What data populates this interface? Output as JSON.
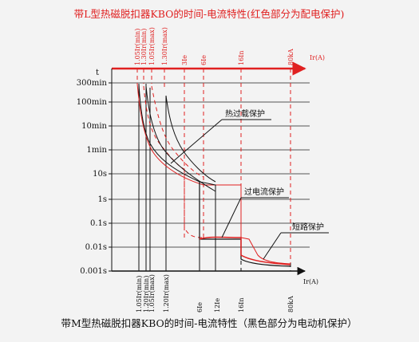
{
  "chart_data": {
    "type": "line",
    "title_top": "带L型热磁脱扣器KBO的时间-电流特性(红色部分为配电保护)",
    "title_bottom": "带M型热磁脱扣器KBO的时间-电流特性（黑色部分为电动机保护）",
    "y_axis": {
      "label": "t",
      "ticks": [
        "300min",
        "100min",
        "10min",
        "1min",
        "10s",
        "1s",
        "0.1s",
        "0.01s",
        "0.001s"
      ],
      "scale": "log"
    },
    "x_axis_label": "Ir(A)",
    "x_axis_label_bottom": "Ir(A)",
    "top_ticks": [
      {
        "label": "1.05Ir(min)",
        "color": "#e02020"
      },
      {
        "label": "1.30Ir(min)",
        "color": "#e02020"
      },
      {
        "label": "1.05Ir(max)",
        "color": "#e02020"
      },
      {
        "label": "1.30Ir(max)",
        "color": "#e02020"
      },
      {
        "label": "3Ie",
        "color": "#e02020"
      },
      {
        "label": "6Ie",
        "color": "#e02020"
      },
      {
        "label": "16In",
        "color": "#e02020"
      },
      {
        "label": "80kA",
        "color": "#e02020"
      }
    ],
    "bottom_ticks": [
      {
        "label": "1.05Ir(min)",
        "color": "#111111"
      },
      {
        "label": "1.20Ir(min)",
        "color": "#111111"
      },
      {
        "label": "1.05Ir(max)",
        "color": "#111111"
      },
      {
        "label": "1.20Ir(max)",
        "color": "#111111"
      },
      {
        "label": "6Ie",
        "color": "#111111"
      },
      {
        "label": "12Ie",
        "color": "#111111"
      },
      {
        "label": "16In",
        "color": "#111111"
      },
      {
        "label": "80kA",
        "color": "#111111"
      }
    ],
    "annotations": [
      "热过载保护",
      "过电流保护",
      "短路保护"
    ],
    "series": [
      {
        "color": "#e02020",
        "style": "solid"
      },
      {
        "color": "#111111",
        "style": "solid"
      },
      {
        "color": "#e02020",
        "style": "dashed"
      }
    ],
    "grid": true
  }
}
